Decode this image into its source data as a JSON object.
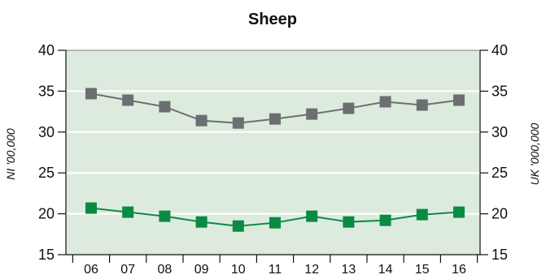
{
  "chart_data": {
    "type": "line",
    "title": "Sheep",
    "ylabel_left": "NI '00,000",
    "ylabel_right": "UK '000,000",
    "categories": [
      "06",
      "07",
      "08",
      "09",
      "10",
      "11",
      "12",
      "13",
      "14",
      "15",
      "16"
    ],
    "ylim": [
      15,
      40
    ],
    "yticks": [
      15,
      20,
      25,
      30,
      35,
      40
    ],
    "grid": true,
    "background_color": "#dcebde",
    "series": [
      {
        "axis": "right",
        "color": "#6d6e71",
        "marker": "square",
        "values": [
          34.7,
          33.9,
          33.1,
          31.4,
          31.1,
          31.6,
          32.2,
          32.9,
          33.7,
          33.3,
          33.9
        ]
      },
      {
        "axis": "left",
        "color": "#0a8a43",
        "marker": "square",
        "values": [
          20.7,
          20.2,
          19.7,
          19.0,
          18.5,
          18.9,
          19.7,
          19.0,
          19.2,
          19.9,
          20.2
        ]
      }
    ]
  }
}
